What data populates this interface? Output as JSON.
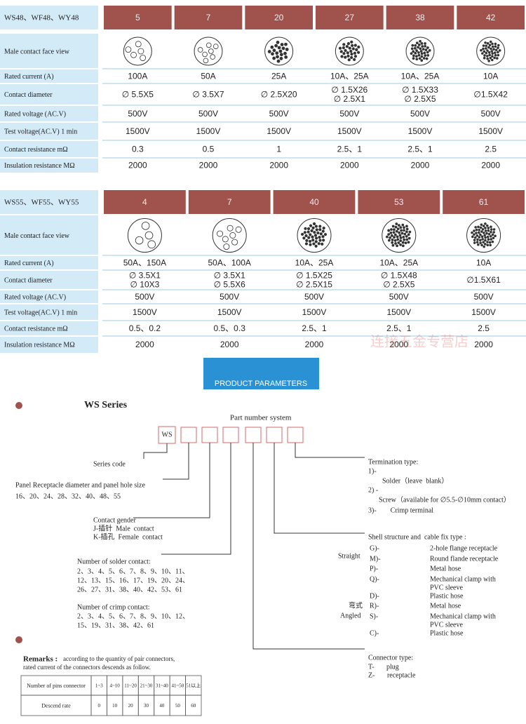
{
  "tables": [
    {
      "header": "WS48、WF48、WY48",
      "columns": [
        "5",
        "7",
        "20",
        "27",
        "38",
        "42"
      ],
      "row_labels": [
        "Male contact face view",
        "Rated current (A)",
        "Contact diameter",
        "Rated voltage (AC.V)",
        "Test voltage(AC.V) 1 min",
        "Contact resistance mΩ",
        "Insulation resistance MΩ"
      ],
      "rows": [
        [
          "100A",
          "50A",
          "25A",
          "10A、25A",
          "10A、25A",
          "10A"
        ],
        [
          [
            "∅ 5.5X5"
          ],
          [
            "∅ 3.5X7"
          ],
          [
            "∅ 2.5X20"
          ],
          [
            "∅ 1.5X26",
            "∅ 2.5X1"
          ],
          [
            "∅ 1.5X33",
            "∅ 2.5X5"
          ],
          [
            "∅1.5X42"
          ]
        ],
        [
          "500V",
          "500V",
          "500V",
          "500V",
          "500V",
          "500V"
        ],
        [
          "1500V",
          "1500V",
          "1500V",
          "1500V",
          "1500V",
          "1500V"
        ],
        [
          "0.3",
          "0.5",
          "1",
          "2.5、1",
          "2.5、1",
          "2.5"
        ],
        [
          "2000",
          "2000",
          "2000",
          "2000",
          "2000",
          "2000"
        ]
      ]
    },
    {
      "header": "WS55、WF55、WY55",
      "columns": [
        "4",
        "7",
        "40",
        "53",
        "61"
      ],
      "row_labels": [
        "Male contact face view",
        "Rated current (A)",
        "Contact diameter",
        "Rated voltage (AC.V)",
        "Test voltage(AC.V) 1 min",
        "Contact resistance mΩ",
        "Insulation resistance MΩ"
      ],
      "rows": [
        [
          "50A、150A",
          "50A、100A",
          "10A、25A",
          "10A、25A",
          "10A"
        ],
        [
          [
            "∅ 3.5X1",
            "∅ 10X3"
          ],
          [
            "∅ 3.5X1",
            "∅ 5.5X6"
          ],
          [
            "∅ 1.5X25",
            "∅ 2.5X15"
          ],
          [
            "∅ 1.5X48",
            "∅ 2.5X5"
          ],
          [
            "∅1.5X61"
          ]
        ],
        [
          "500V",
          "500V",
          "500V",
          "500V",
          "500V"
        ],
        [
          "1500V",
          "1500V",
          "1500V",
          "1500V",
          "1500V"
        ],
        [
          "0.5、0.2",
          "0.5、0.3",
          "2.5、1",
          "2.5、1",
          "2.5"
        ],
        [
          "2000",
          "2000",
          "2000",
          "2000",
          "2000"
        ]
      ]
    }
  ],
  "watermark": "连接五金专营店",
  "banner": "PRODUCT PARAMETERS",
  "part_number": {
    "title": "WS Series",
    "subtitle": "Part number system",
    "code": "WS",
    "series_code": "Series code",
    "panel": {
      "label": "Panel Receptacle diameter and panel hole size",
      "sizes": "16、20、24、28、32、40、48、55"
    },
    "gender": {
      "label": "Contact gender",
      "items": [
        "J-插针  Male  contact",
        "K-插孔  Female  contact"
      ]
    },
    "solder": {
      "label": "Number of solder contact:",
      "lines": [
        "2、3、4、5、6、7、8、9、10、11、",
        "12、13、15、16、17、19、20、24、",
        "26、27、31、38、40、42、53、61"
      ]
    },
    "crimp": {
      "label": "Number of crimp contact:",
      "lines": [
        "2、3、4、5、6、7、8、9、10、12、",
        "15、19、31、38、42、61"
      ]
    },
    "termination": {
      "label": "Termination type:",
      "items": [
        "1)-",
        "Solder（leave  blank）",
        "2) -",
        "Screw（available for ∅5.5-∅10mm contact）",
        "3)-        Crimp terminal"
      ]
    },
    "shell": {
      "label": "Shell structure and  cable fix type :",
      "straight": "Straight",
      "angled_cn": "弯式",
      "angled": "Angled",
      "items": [
        {
          "code": "G)-",
          "desc": [
            "2-hole flange receptacle"
          ]
        },
        {
          "code": "M)-",
          "desc": [
            "Round flande receptacle"
          ]
        },
        {
          "code": "P)-",
          "desc": [
            "Metal hose"
          ]
        },
        {
          "code": "Q)-",
          "desc": [
            "Mechanical clamp with",
            "PVC sleeve"
          ]
        },
        {
          "code": "D)-",
          "desc": [
            "Plastic hose"
          ]
        },
        {
          "code": "R)-",
          "desc": [
            "Metal hose"
          ]
        },
        {
          "code": "S)-",
          "desc": [
            "Mechanical clamp with",
            "PVC sleeve"
          ]
        },
        {
          "code": "C)-",
          "desc": [
            "Plastic hose"
          ]
        }
      ]
    },
    "connector": {
      "label": "Connector type:",
      "items": [
        "T-       plug",
        "Z-       receptacle"
      ]
    }
  },
  "remarks": {
    "title": "Remarks :",
    "text": [
      "according to the quantity of pair connectors,",
      "rated current of the connectors descends as follow."
    ],
    "table": [
      [
        "Number of pins connector",
        "1~3",
        "4~10",
        "11~20",
        "21~30",
        "31~40",
        "41~50",
        "51以上"
      ],
      [
        "Descend rate",
        "0",
        "10",
        "20",
        "30",
        "40",
        "50",
        "60"
      ]
    ]
  }
}
